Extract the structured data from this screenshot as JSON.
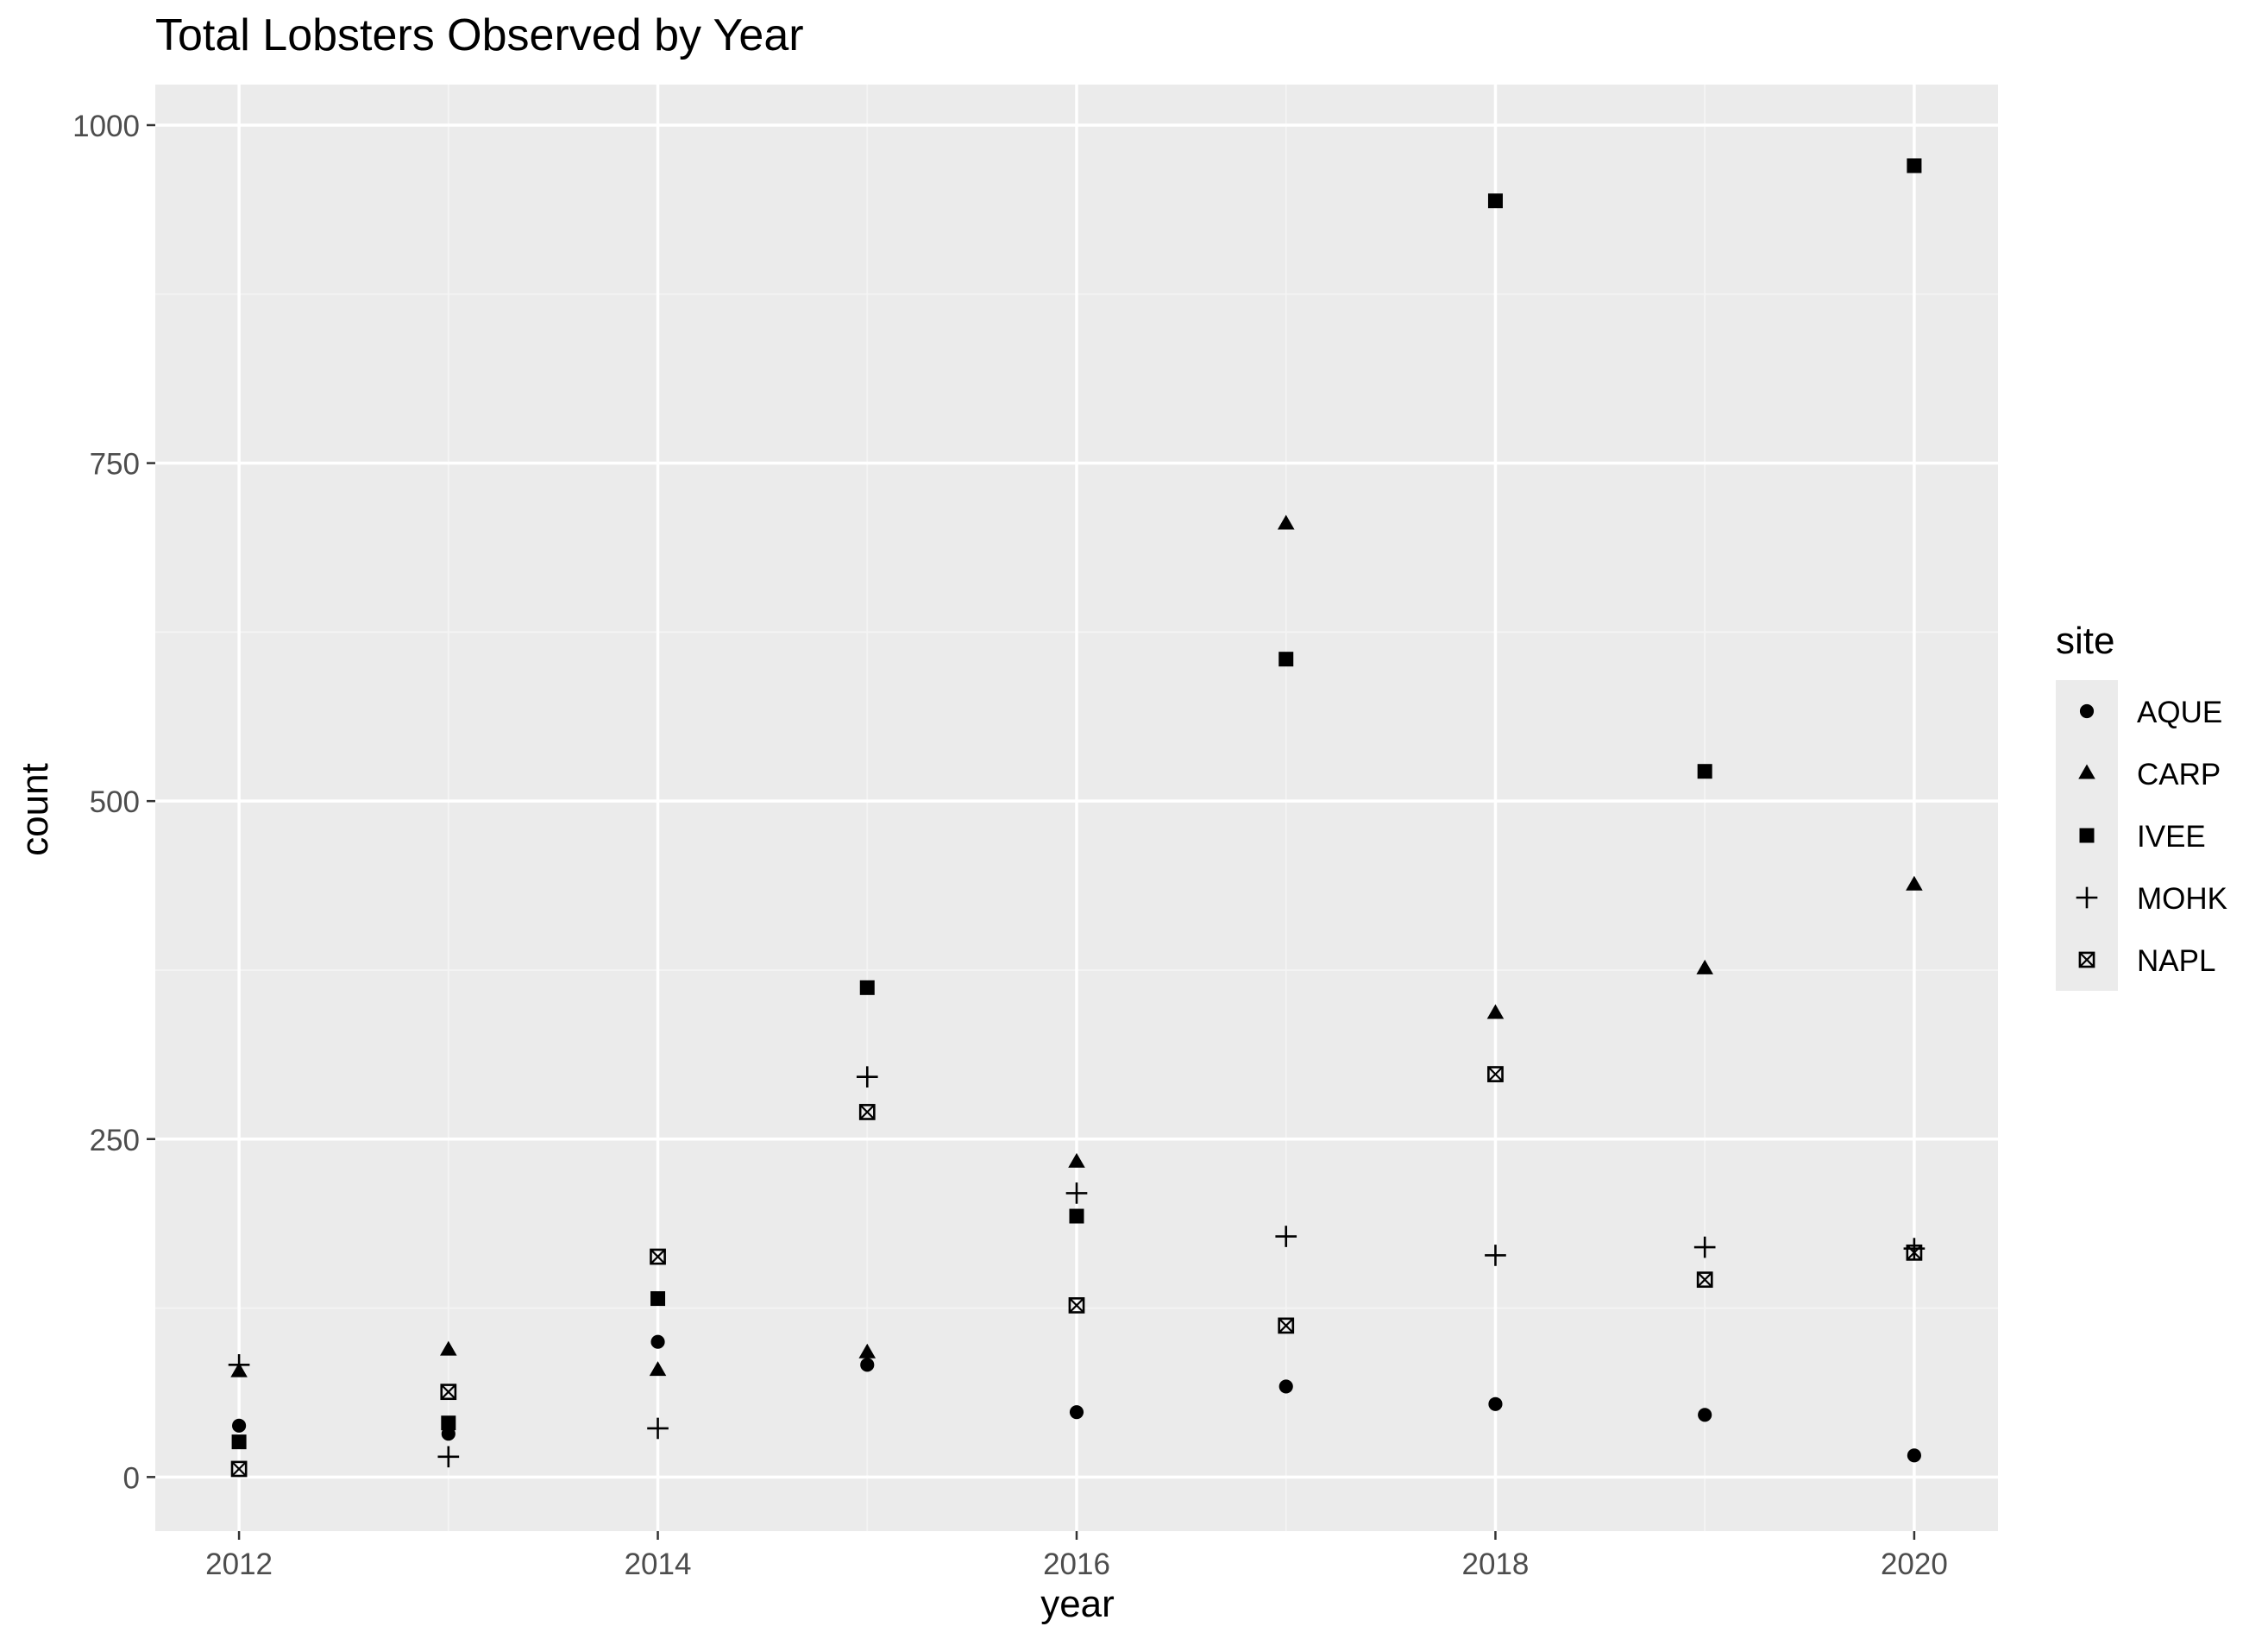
{
  "chart_data": {
    "type": "scatter",
    "title": "Total Lobsters Observed by Year",
    "xlabel": "year",
    "ylabel": "count",
    "xlim": [
      2011.6,
      2020.4
    ],
    "ylim": [
      -40,
      1030
    ],
    "x_ticks": [
      2012,
      2014,
      2016,
      2018,
      2020
    ],
    "y_ticks": [
      0,
      250,
      500,
      750,
      1000
    ],
    "grid": true,
    "legend": {
      "title": "site",
      "position": "right"
    },
    "series": [
      {
        "name": "AQUE",
        "shape": "filled-circle",
        "points": [
          {
            "x": 2012,
            "y": 38
          },
          {
            "x": 2013,
            "y": 32
          },
          {
            "x": 2014,
            "y": 100
          },
          {
            "x": 2015,
            "y": 83
          },
          {
            "x": 2016,
            "y": 48
          },
          {
            "x": 2017,
            "y": 67
          },
          {
            "x": 2018,
            "y": 54
          },
          {
            "x": 2019,
            "y": 46
          },
          {
            "x": 2020,
            "y": 16
          }
        ]
      },
      {
        "name": "CARP",
        "shape": "filled-triangle",
        "points": [
          {
            "x": 2012,
            "y": 78
          },
          {
            "x": 2013,
            "y": 94
          },
          {
            "x": 2014,
            "y": 79
          },
          {
            "x": 2015,
            "y": 92
          },
          {
            "x": 2016,
            "y": 233
          },
          {
            "x": 2017,
            "y": 705
          },
          {
            "x": 2018,
            "y": 343
          },
          {
            "x": 2019,
            "y": 376
          },
          {
            "x": 2020,
            "y": 438
          }
        ]
      },
      {
        "name": "IVEE",
        "shape": "filled-square",
        "points": [
          {
            "x": 2012,
            "y": 26
          },
          {
            "x": 2013,
            "y": 40
          },
          {
            "x": 2014,
            "y": 132
          },
          {
            "x": 2015,
            "y": 362
          },
          {
            "x": 2016,
            "y": 193
          },
          {
            "x": 2017,
            "y": 605
          },
          {
            "x": 2018,
            "y": 944
          },
          {
            "x": 2019,
            "y": 522
          },
          {
            "x": 2020,
            "y": 970
          }
        ]
      },
      {
        "name": "MOHK",
        "shape": "plus",
        "points": [
          {
            "x": 2012,
            "y": 83
          },
          {
            "x": 2013,
            "y": 15
          },
          {
            "x": 2014,
            "y": 36
          },
          {
            "x": 2015,
            "y": 296
          },
          {
            "x": 2016,
            "y": 210
          },
          {
            "x": 2017,
            "y": 178
          },
          {
            "x": 2018,
            "y": 164
          },
          {
            "x": 2019,
            "y": 170
          },
          {
            "x": 2020,
            "y": 169
          }
        ]
      },
      {
        "name": "NAPL",
        "shape": "boxed-x",
        "points": [
          {
            "x": 2012,
            "y": 6
          },
          {
            "x": 2013,
            "y": 63
          },
          {
            "x": 2014,
            "y": 163
          },
          {
            "x": 2015,
            "y": 270
          },
          {
            "x": 2016,
            "y": 127
          },
          {
            "x": 2017,
            "y": 112
          },
          {
            "x": 2018,
            "y": 298
          },
          {
            "x": 2019,
            "y": 146
          },
          {
            "x": 2020,
            "y": 166
          }
        ]
      }
    ],
    "colors": {
      "panel_background": "#ebebeb",
      "grid_major": "#ffffff",
      "grid_minor": "#f4f4f4",
      "point": "#000000",
      "legend_key_background": "#ebebeb",
      "tick_label": "#4d4d4d",
      "text": "#000000"
    }
  }
}
